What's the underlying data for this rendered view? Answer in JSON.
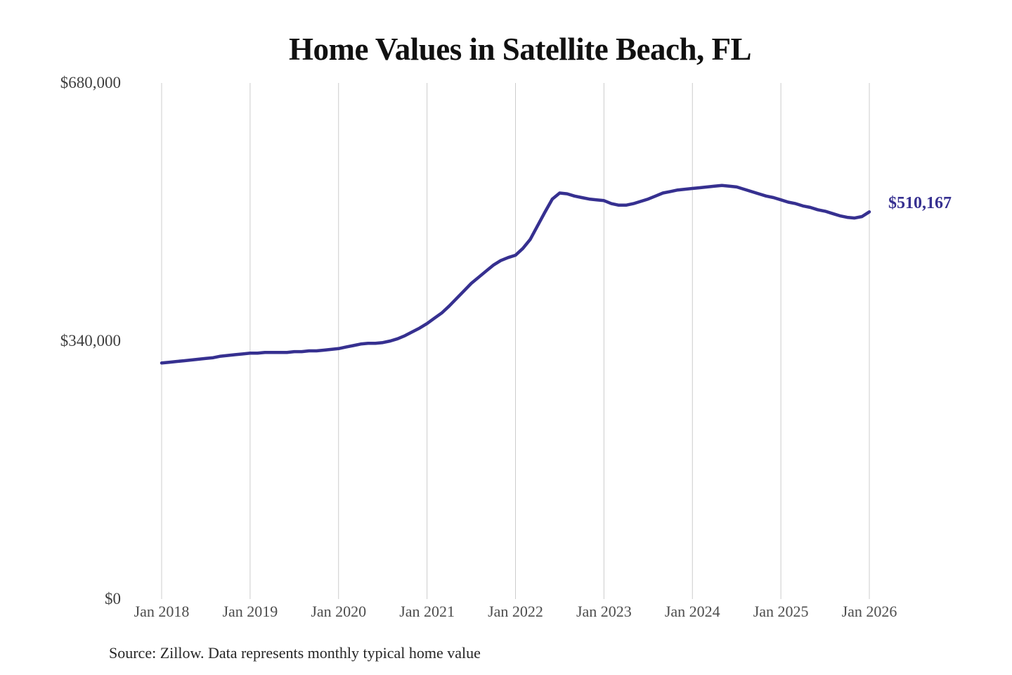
{
  "header": {
    "title": "Home Values in Satellite Beach, FL"
  },
  "chart": {
    "end_label": "$510,167",
    "source_note": "Source: Zillow. Data represents monthly typical home value",
    "accent_color": "#363090",
    "gridline_color": "#cccccc",
    "y_label_color": "#3f3f3f",
    "x_label_color": "#4d4d4d"
  },
  "chart_data": {
    "type": "line",
    "title": "Home Values in Satellite Beach, FL",
    "xlabel": "",
    "ylabel": "",
    "x_tick_labels": [
      "Jan 2018",
      "Jan 2019",
      "Jan 2020",
      "Jan 2021",
      "Jan 2022",
      "Jan 2023",
      "Jan 2024",
      "Jan 2025",
      "Jan 2026"
    ],
    "y_ticks": [
      0,
      340000,
      680000
    ],
    "y_tick_labels": [
      "$0",
      "$340,000",
      "$680,000"
    ],
    "ylim": [
      0,
      680000
    ],
    "grid": "vertical-only",
    "legend": "none",
    "end_value": 510167,
    "end_value_label": "$510,167",
    "source": "Source: Zillow. Data represents monthly typical home value",
    "series": [
      {
        "name": "Monthly typical home value",
        "color": "#363090",
        "start_month": "2018-01",
        "end_month": "2026-01",
        "values": [
          311000,
          312000,
          313000,
          314000,
          315000,
          316000,
          317000,
          318000,
          320000,
          321000,
          322000,
          323000,
          324000,
          324000,
          325000,
          325000,
          325000,
          325000,
          326000,
          326000,
          327000,
          327000,
          328000,
          329000,
          330000,
          332000,
          334000,
          336000,
          337000,
          337000,
          338000,
          340000,
          343000,
          347000,
          352000,
          357000,
          363000,
          370000,
          377000,
          386000,
          396000,
          406000,
          416000,
          424000,
          432000,
          440000,
          446000,
          450000,
          453000,
          462000,
          474000,
          492000,
          510000,
          527000,
          535000,
          534000,
          531000,
          529000,
          527000,
          526000,
          525000,
          521000,
          519000,
          519000,
          521000,
          524000,
          527000,
          531000,
          535000,
          537000,
          539000,
          540000,
          541000,
          542000,
          543000,
          544000,
          545000,
          544000,
          543000,
          540000,
          537000,
          534000,
          531000,
          529000,
          526000,
          523000,
          521000,
          518000,
          516000,
          513000,
          511000,
          508000,
          505000,
          503000,
          502000,
          504000,
          510167
        ]
      }
    ]
  }
}
